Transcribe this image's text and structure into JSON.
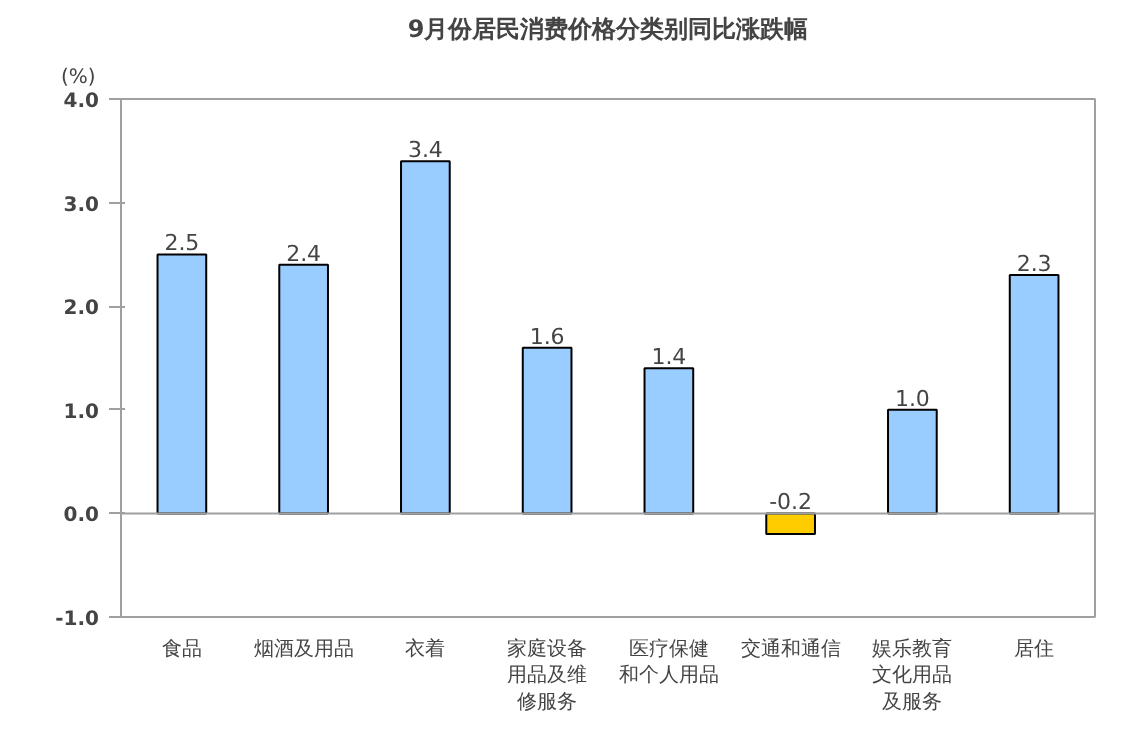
{
  "chart_data": {
    "type": "bar",
    "title": "9月份居民消费价格分类别同比涨跌幅",
    "ylabel": "(%)",
    "categories": [
      "食品",
      "烟酒及用品",
      "衣着",
      "家庭设备用品及维修服务",
      "医疗保健和个人用品",
      "交通和通信",
      "娱乐教育文化用品及服务",
      "居住"
    ],
    "value_labels": [
      "2.5",
      "2.4",
      "3.4",
      "1.6",
      "1.4",
      "-0.2",
      "1.0",
      "2.3"
    ],
    "values": [
      2.5,
      2.4,
      3.4,
      1.6,
      1.4,
      -0.2,
      1.0,
      2.3
    ],
    "colors": [
      "#99ccff",
      "#99ccff",
      "#99ccff",
      "#99ccff",
      "#99ccff",
      "#ffcc00",
      "#99ccff",
      "#99ccff"
    ],
    "ylim": [
      -1.0,
      4.0
    ],
    "yticks": [
      {
        "value": -1.0,
        "label": "-1.0"
      },
      {
        "value": 0.0,
        "label": "0.0"
      },
      {
        "value": 1.0,
        "label": "1.0"
      },
      {
        "value": 2.0,
        "label": "2.0"
      },
      {
        "value": 3.0,
        "label": "3.0"
      },
      {
        "value": 4.0,
        "label": "4.0"
      }
    ],
    "ref_lines": [
      {
        "axis": "y",
        "value": 0.0,
        "color": "#a0a0a0"
      }
    ],
    "grid": false
  }
}
